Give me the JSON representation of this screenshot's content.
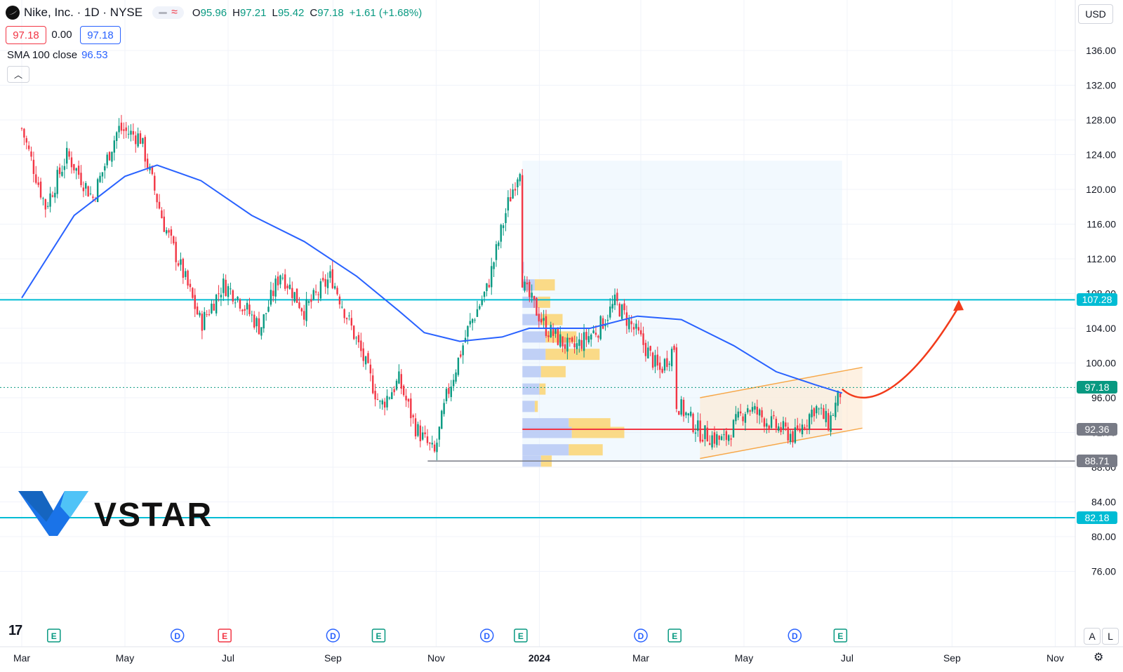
{
  "header": {
    "symbol": "Nike, Inc. · 1D · NYSE",
    "o_label": "O",
    "o_value": "95.96",
    "h_label": "H",
    "h_value": "97.21",
    "l_label": "L",
    "l_value": "95.42",
    "c_label": "C",
    "c_value": "97.18",
    "change": "+1.61 (+1.68%)",
    "bid": "97.18",
    "spread": "0.00",
    "ask": "97.18"
  },
  "indicator": {
    "label": "SMA 100 close",
    "value": "96.53",
    "color": "#2962ff"
  },
  "currency": "USD",
  "brand": {
    "name": "VSTAR"
  },
  "toolbar": {
    "auto_label": "A",
    "log_label": "L"
  },
  "colors": {
    "up": "#089981",
    "down": "#f23645",
    "level": "#00bcd4",
    "sma": "#2962ff",
    "arrow": "#f23b1b",
    "channel": "#f7a84a"
  },
  "chart_data": {
    "type": "candlestick",
    "symbol": "NKE",
    "interval": "1D",
    "ylim": [
      73,
      139
    ],
    "y_ticks": [
      "136.00",
      "132.00",
      "128.00",
      "124.00",
      "120.00",
      "116.00",
      "112.00",
      "108.00",
      "104.00",
      "100.00",
      "96.00",
      "92.00",
      "88.00",
      "84.00",
      "80.00",
      "76.00"
    ],
    "x_ticks": [
      "Mar",
      "May",
      "Jul",
      "Sep",
      "Nov",
      "2024",
      "Mar",
      "May",
      "Jul",
      "Sep",
      "Nov"
    ],
    "price_labels": [
      {
        "text": "107.28",
        "value": 107.28,
        "color": "#00bcd4"
      },
      {
        "text": "97.18",
        "value": 97.18,
        "color": "#089981"
      },
      {
        "text": "92.36",
        "value": 92.36,
        "color": "#787b86"
      },
      {
        "text": "88.71",
        "value": 88.71,
        "color": "#787b86"
      },
      {
        "text": "82.18",
        "value": 82.18,
        "color": "#00bcd4"
      }
    ],
    "horizontal_levels": [
      107.28,
      82.18
    ],
    "support_line": 88.71,
    "poc_line": 92.36,
    "event_markers": [
      {
        "date": "2023-03-20",
        "label": "E",
        "kind": "earnings"
      },
      {
        "date": "2023-06-01",
        "label": "D",
        "kind": "dividend"
      },
      {
        "date": "2023-06-29",
        "label": "E",
        "kind": "earnings-neg"
      },
      {
        "date": "2023-09-01",
        "label": "D",
        "kind": "dividend"
      },
      {
        "date": "2023-09-28",
        "label": "E",
        "kind": "earnings"
      },
      {
        "date": "2023-12-01",
        "label": "D",
        "kind": "dividend"
      },
      {
        "date": "2023-12-21",
        "label": "E",
        "kind": "earnings"
      },
      {
        "date": "2024-03-01",
        "label": "D",
        "kind": "dividend"
      },
      {
        "date": "2024-03-21",
        "label": "E",
        "kind": "earnings"
      },
      {
        "date": "2024-05-31",
        "label": "D",
        "kind": "dividend"
      },
      {
        "date": "2024-06-27",
        "label": "E",
        "kind": "earnings"
      }
    ],
    "price_path": [
      [
        "2023-03-01",
        127.0
      ],
      [
        "2023-03-15",
        118.0
      ],
      [
        "2023-03-28",
        124.0
      ],
      [
        "2023-04-12",
        119.0
      ],
      [
        "2023-04-27",
        127.0
      ],
      [
        "2023-05-10",
        126.0
      ],
      [
        "2023-05-24",
        116.0
      ],
      [
        "2023-06-05",
        110.0
      ],
      [
        "2023-06-15",
        104.5
      ],
      [
        "2023-06-28",
        109.0
      ],
      [
        "2023-07-05",
        108.0
      ],
      [
        "2023-07-20",
        104.0
      ],
      [
        "2023-08-01",
        110.5
      ],
      [
        "2023-08-15",
        106.0
      ],
      [
        "2023-08-31",
        110.0
      ],
      [
        "2023-09-18",
        101.0
      ],
      [
        "2023-09-29",
        95.0
      ],
      [
        "2023-10-10",
        98.0
      ],
      [
        "2023-10-20",
        92.5
      ],
      [
        "2023-10-31",
        89.5
      ],
      [
        "2023-11-07",
        96.0
      ],
      [
        "2023-11-20",
        104.0
      ],
      [
        "2023-12-01",
        108.5
      ],
      [
        "2023-12-13",
        118.0
      ],
      [
        "2023-12-21",
        123.0
      ],
      [
        "2023-12-22",
        109.0
      ],
      [
        "2024-01-05",
        104.0
      ],
      [
        "2024-01-20",
        101.5
      ],
      [
        "2024-02-05",
        104.0
      ],
      [
        "2024-02-15",
        107.0
      ],
      [
        "2024-02-29",
        103.0
      ],
      [
        "2024-03-12",
        99.0
      ],
      [
        "2024-03-21",
        102.0
      ],
      [
        "2024-03-22",
        95.5
      ],
      [
        "2024-04-05",
        92.0
      ],
      [
        "2024-04-19",
        91.0
      ],
      [
        "2024-05-03",
        95.0
      ],
      [
        "2024-05-17",
        93.0
      ],
      [
        "2024-05-31",
        91.5
      ],
      [
        "2024-06-12",
        95.0
      ],
      [
        "2024-06-20",
        93.0
      ],
      [
        "2024-06-28",
        97.18
      ]
    ],
    "sma_path": [
      [
        "2023-03-01",
        107.5
      ],
      [
        "2023-04-01",
        117.0
      ],
      [
        "2023-05-01",
        121.5
      ],
      [
        "2023-05-20",
        122.8
      ],
      [
        "2023-06-15",
        121.0
      ],
      [
        "2023-07-15",
        117.0
      ],
      [
        "2023-08-15",
        114.0
      ],
      [
        "2023-09-15",
        110.0
      ],
      [
        "2023-10-10",
        106.0
      ],
      [
        "2023-10-25",
        103.5
      ],
      [
        "2023-11-15",
        102.5
      ],
      [
        "2023-12-10",
        103.0
      ],
      [
        "2023-12-26",
        104.0
      ],
      [
        "2024-01-31",
        104.0
      ],
      [
        "2024-02-28",
        105.4
      ],
      [
        "2024-03-25",
        105.0
      ],
      [
        "2024-04-25",
        102.0
      ],
      [
        "2024-05-20",
        99.0
      ],
      [
        "2024-06-12",
        97.5
      ],
      [
        "2024-06-28",
        96.53
      ]
    ],
    "volume_profile": {
      "from_date": "2023-12-22",
      "to_date": "2024-06-28",
      "rows": [
        {
          "price": 111.0,
          "up": 1,
          "down": 0
        },
        {
          "price": 109.0,
          "up": 8,
          "down": 13
        },
        {
          "price": 107.0,
          "up": 10,
          "down": 8
        },
        {
          "price": 105.0,
          "up": 12,
          "down": 14
        },
        {
          "price": 103.0,
          "up": 15,
          "down": 20
        },
        {
          "price": 101.0,
          "up": 15,
          "down": 35
        },
        {
          "price": 99.0,
          "up": 12,
          "down": 16
        },
        {
          "price": 97.0,
          "up": 11,
          "down": 4
        },
        {
          "price": 95.0,
          "up": 8,
          "down": 2
        },
        {
          "price": 93.0,
          "up": 30,
          "down": 27
        },
        {
          "price": 92.0,
          "up": 32,
          "down": 34
        },
        {
          "price": 90.0,
          "up": 30,
          "down": 22
        },
        {
          "price": 88.7,
          "up": 12,
          "down": 7
        }
      ]
    },
    "projection": {
      "channel": [
        [
          "2024-04-05",
          89.0,
          96.0
        ],
        [
          "2024-07-10",
          92.5,
          99.5
        ]
      ],
      "arrow": [
        [
          "2024-06-28",
          97.0
        ],
        [
          "2024-07-15",
          94.0
        ],
        [
          "2024-08-10",
          98.0
        ],
        [
          "2024-09-05",
          106.5
        ]
      ]
    },
    "price_range_box": {
      "from_date": "2023-12-22",
      "to_date": "2024-06-28",
      "low": 88.71,
      "high": 123.3
    }
  }
}
